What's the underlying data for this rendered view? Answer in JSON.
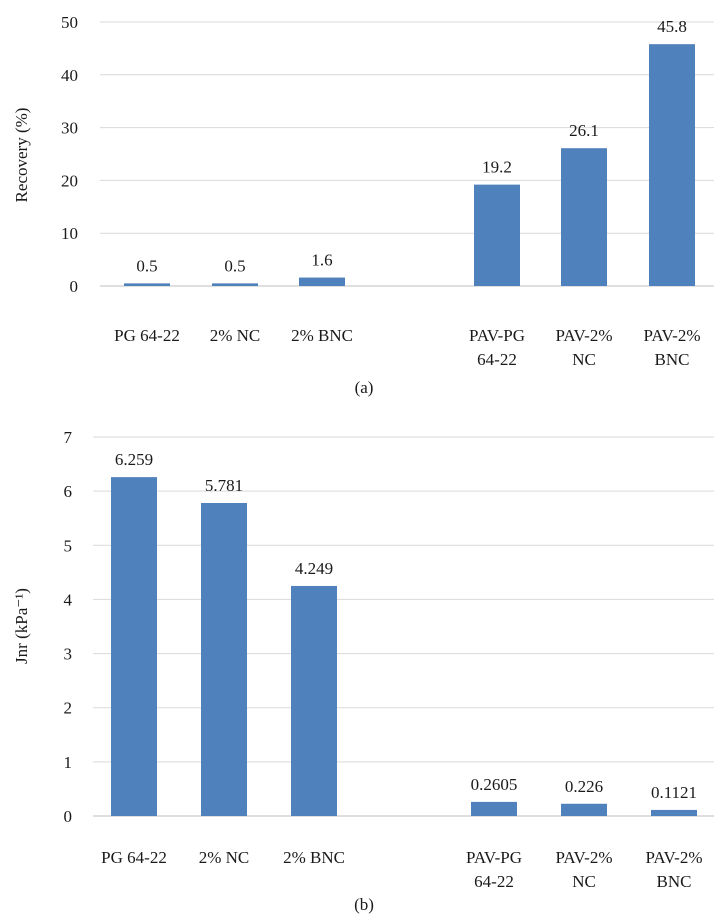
{
  "colors": {
    "bar": "#4f81bd",
    "grid": "#d9d9d9",
    "text": "#1a1a1a"
  },
  "chart_data": [
    {
      "type": "bar",
      "caption": "(a)",
      "ylabel": "Recovery (%)",
      "ylim": [
        0,
        50
      ],
      "yticks": [
        "0",
        "10",
        "20",
        "30",
        "40",
        "50"
      ],
      "grid": true,
      "categories": [
        [
          "PG 64-22"
        ],
        [
          "2% NC"
        ],
        [
          "2% BNC"
        ],
        [],
        [
          "PAV-PG",
          "64-22"
        ],
        [
          "PAV-2%",
          "NC"
        ],
        [
          "PAV-2%",
          "BNC"
        ]
      ],
      "values": [
        0.5,
        0.5,
        1.6,
        null,
        19.2,
        26.1,
        45.8
      ],
      "data_labels": [
        "0.5",
        "0.5",
        "1.6",
        "",
        "19.2",
        "26.1",
        "45.8"
      ]
    },
    {
      "type": "bar",
      "caption": "(b)",
      "ylabel": "Jnr (kPa⁻¹)",
      "ylim": [
        0,
        7
      ],
      "yticks": [
        "0",
        "1",
        "2",
        "3",
        "4",
        "5",
        "6",
        "7"
      ],
      "grid": true,
      "categories": [
        [
          "PG 64-22"
        ],
        [
          "2% NC"
        ],
        [
          "2% BNC"
        ],
        [],
        [
          "PAV-PG",
          "64-22"
        ],
        [
          "PAV-2%",
          "NC"
        ],
        [
          "PAV-2%",
          "BNC"
        ]
      ],
      "values": [
        6.259,
        5.781,
        4.249,
        null,
        0.2605,
        0.226,
        0.1121
      ],
      "data_labels": [
        "6.259",
        "5.781",
        "4.249",
        "",
        "0.2605",
        "0.226",
        "0.1121"
      ]
    }
  ]
}
